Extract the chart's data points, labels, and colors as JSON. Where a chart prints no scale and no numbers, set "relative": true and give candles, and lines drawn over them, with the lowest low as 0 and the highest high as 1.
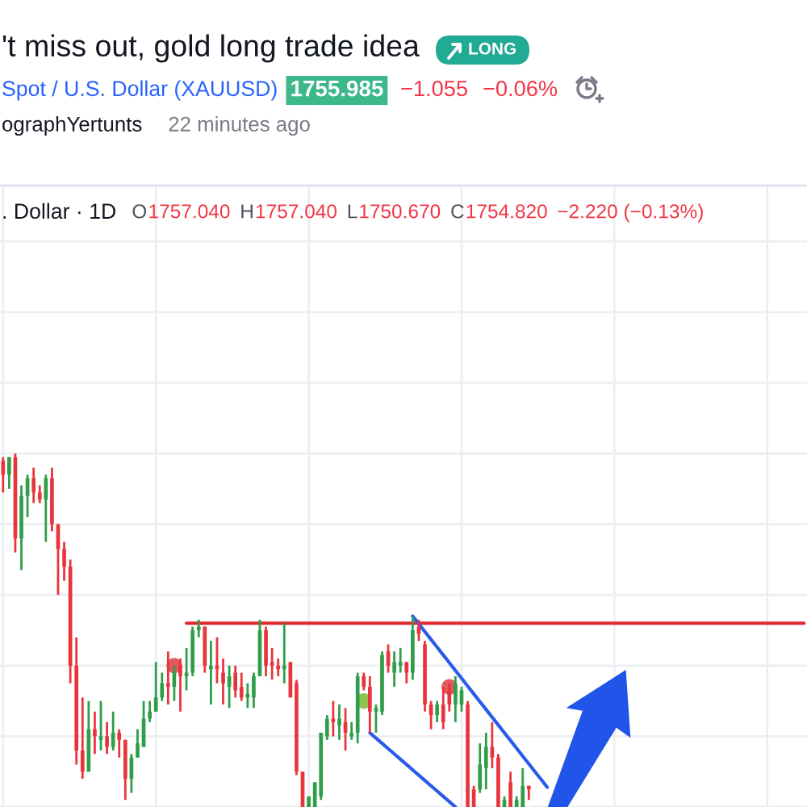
{
  "chart_data": {
    "type": "candlestick",
    "title": "'t miss out, gold long trade idea",
    "subtitle": "Spot / U.S. Dollar (XAUUSD)",
    "annotations": [
      "LONG",
      "1755.985",
      "−1.055",
      "−0.06%",
      "ographYertunts",
      "22 minutes ago",
      ". Dollar · 1D",
      "O",
      "1757.040",
      "H",
      "1757.040",
      "L",
      "1750.670",
      "C",
      "1754.820",
      "−2.220 (−0.13%)"
    ],
    "categories": [
      null,
      null,
      null,
      null,
      null,
      null,
      null,
      null,
      null,
      null,
      null,
      null,
      null,
      null,
      null,
      null,
      null,
      null,
      null,
      null,
      null,
      null,
      null,
      null,
      null,
      null,
      null,
      null,
      null,
      null,
      null,
      null,
      null,
      null,
      null,
      null,
      null,
      null,
      null,
      null,
      null,
      null,
      null,
      null,
      null,
      null,
      null,
      null,
      null,
      null,
      null,
      null,
      null,
      null,
      null,
      null,
      null,
      null,
      null,
      null,
      null,
      null,
      null,
      null,
      null,
      null,
      null,
      null,
      null,
      null,
      null,
      null,
      null,
      null,
      null,
      null,
      null,
      null,
      null,
      null,
      null,
      null,
      null,
      null,
      null,
      null,
      null,
      null,
      null,
      null,
      null,
      null,
      null,
      null,
      null,
      null,
      null,
      null,
      null,
      null,
      null,
      null,
      null,
      null,
      null,
      null,
      null,
      null,
      null,
      null,
      null,
      null,
      null,
      null,
      null,
      null,
      null,
      null,
      null,
      null,
      null,
      null,
      null,
      null,
      null,
      null,
      null,
      null,
      null,
      null,
      null,
      null
    ],
    "relative": true,
    "grid": true,
    "tick_labels": false,
    "ohlc": [
      [
        0.98,
        0.99,
        0.89,
        0.94
      ],
      [
        0.94,
        0.99,
        0.9,
        0.99
      ],
      [
        0.99,
        1.0,
        0.72,
        0.76
      ],
      [
        0.76,
        0.91,
        0.67,
        0.88
      ],
      [
        0.88,
        0.94,
        0.82,
        0.93
      ],
      [
        0.93,
        0.96,
        0.86,
        0.89
      ],
      [
        0.89,
        0.91,
        0.86,
        0.87
      ],
      [
        0.87,
        0.94,
        0.75,
        0.93
      ],
      [
        0.93,
        0.96,
        0.78,
        0.8
      ],
      [
        0.8,
        0.8,
        0.6,
        0.73
      ],
      [
        0.73,
        0.75,
        0.64,
        0.68
      ],
      [
        0.68,
        0.7,
        0.35,
        0.4
      ],
      [
        0.4,
        0.48,
        0.12,
        0.16
      ],
      [
        0.16,
        0.31,
        0.08,
        0.1
      ],
      [
        0.1,
        0.3,
        0.1,
        0.22
      ],
      [
        0.22,
        0.27,
        0.15,
        0.2
      ],
      [
        0.19,
        0.3,
        0.16,
        0.2
      ],
      [
        0.2,
        0.24,
        0.15,
        0.17
      ],
      [
        0.17,
        0.27,
        0.16,
        0.21
      ],
      [
        0.21,
        0.22,
        0.14,
        0.19
      ],
      [
        0.19,
        0.19,
        0.02,
        0.08
      ],
      [
        0.08,
        0.15,
        0.04,
        0.14
      ],
      [
        0.14,
        0.22,
        0.14,
        0.18
      ],
      [
        0.17,
        0.3,
        0.17,
        0.25
      ],
      [
        0.25,
        0.3,
        0.24,
        0.27
      ],
      [
        0.27,
        0.41,
        0.27,
        0.31
      ],
      [
        0.31,
        0.38,
        0.3,
        0.35
      ],
      [
        0.35,
        0.44,
        0.29,
        0.34
      ],
      [
        0.34,
        0.4,
        0.3,
        0.38
      ],
      [
        0.4,
        0.42,
        0.27,
        0.37
      ],
      [
        0.37,
        0.45,
        0.33,
        0.38
      ],
      [
        0.38,
        0.51,
        0.37,
        0.5
      ],
      [
        0.5,
        0.53,
        0.48,
        0.51
      ],
      [
        0.51,
        0.51,
        0.38,
        0.4
      ],
      [
        0.39,
        0.47,
        0.29,
        0.4
      ],
      [
        0.4,
        0.48,
        0.35,
        0.39
      ],
      [
        0.38,
        0.42,
        0.29,
        0.35
      ],
      [
        0.34,
        0.4,
        0.28,
        0.37
      ],
      [
        0.38,
        0.4,
        0.31,
        0.33
      ],
      [
        0.34,
        0.38,
        0.3,
        0.31
      ],
      [
        0.31,
        0.35,
        0.28,
        0.32
      ],
      [
        0.31,
        0.38,
        0.28,
        0.37
      ],
      [
        0.37,
        0.53,
        0.37,
        0.5
      ],
      [
        0.5,
        0.51,
        0.37,
        0.4
      ],
      [
        0.41,
        0.45,
        0.36,
        0.4
      ],
      [
        0.4,
        0.42,
        0.37,
        0.39
      ],
      [
        0.39,
        0.52,
        0.35,
        0.4
      ],
      [
        0.41,
        0.41,
        0.31,
        0.31
      ],
      [
        0.35,
        0.36,
        0.09,
        0.1
      ],
      [
        0.1,
        0.1,
        0,
        0
      ],
      [
        0,
        0.03,
        0,
        0.03
      ],
      [
        0,
        0.07,
        0,
        0.07
      ],
      [
        0.03,
        0.21,
        0.02,
        0.21
      ],
      [
        0.2,
        0.26,
        0.19,
        0.25
      ],
      [
        0.25,
        0.3,
        0.2,
        0.24
      ],
      [
        0.23,
        0.29,
        0.19,
        0.25
      ],
      [
        0.24,
        0.28,
        0.16,
        0.21
      ],
      [
        0.2,
        0.24,
        0.19,
        0.21
      ],
      [
        0.21,
        0.38,
        0.18,
        0.37
      ],
      [
        0.37,
        0.38,
        0.33,
        0.34
      ],
      [
        0.34,
        0.37,
        0.21,
        0.27
      ],
      [
        0.27,
        0.29,
        0.21,
        0.28
      ],
      [
        0.27,
        0.44,
        0.26,
        0.43
      ],
      [
        0.44,
        0.46,
        0.38,
        0.4
      ],
      [
        0.38,
        0.44,
        0.34,
        0.41
      ],
      [
        0.4,
        0.45,
        0.38,
        0.41
      ],
      [
        0.41,
        0.41,
        0.35,
        0.38
      ],
      [
        0.38,
        0.54,
        0.36,
        0.5
      ],
      [
        0.51,
        0.53,
        0.47,
        0.49
      ],
      [
        0.46,
        0.47,
        0.27,
        0.29
      ],
      [
        0.29,
        0.3,
        0.22,
        0.26
      ],
      [
        0.26,
        0.3,
        0.24,
        0.29
      ],
      [
        0.29,
        0.34,
        0.22,
        0.24
      ],
      [
        0.33,
        0.35,
        0.27,
        0.29
      ],
      [
        0.29,
        0.37,
        0.24,
        0.35
      ],
      [
        0.29,
        0.34,
        0.27,
        0.33
      ],
      [
        0.29,
        0.3,
        0,
        0
      ],
      [
        0.05,
        0.06,
        0,
        0
      ],
      [
        0.05,
        0.18,
        0.04,
        0.12
      ],
      [
        0.11,
        0.21,
        0.05,
        0.17
      ],
      [
        0.17,
        0.24,
        0.11,
        0.14
      ],
      [
        0.14,
        0.15,
        0,
        0
      ],
      [
        0,
        0.03,
        0,
        0.02
      ],
      [
        0.07,
        0.1,
        0,
        0
      ],
      [
        0,
        0.03,
        0,
        0.02
      ],
      [
        0,
        0.11,
        0,
        0.06
      ],
      [
        0.06,
        0.06,
        0.02,
        0.05
      ],
      null,
      null,
      null,
      null,
      null,
      null,
      null,
      null,
      null,
      null,
      null,
      null,
      null,
      null,
      null,
      null,
      null,
      null,
      null,
      null,
      null,
      null,
      null,
      null,
      null,
      null,
      null,
      null,
      null,
      null,
      null,
      null,
      null,
      null,
      null,
      null,
      null,
      null,
      null,
      null,
      null,
      null,
      null,
      null,
      null
    ],
    "colors": [
      "#e8353c",
      "#2f9e4a",
      "#e8353c",
      "#2f9e4a",
      "#2f9e4a",
      "#e8353c",
      "#e8353c",
      "#2f9e4a",
      "#e8353c",
      "#e8353c",
      "#e8353c",
      "#e8353c",
      "#e8353c",
      "#e8353c",
      "#2f9e4a",
      "#e8353c",
      "#2f9e4a",
      "#e8353c",
      "#2f9e4a",
      "#e8353c",
      "#e8353c",
      "#2f9e4a",
      "#2f9e4a",
      "#2f9e4a",
      "#2f9e4a",
      "#2f9e4a",
      "#2f9e4a",
      "#e8353c",
      "#2f9e4a",
      "#e8353c",
      "#2f9e4a",
      "#2f9e4a",
      "#2f9e4a",
      "#e8353c",
      "#2f9e4a",
      "#e8353c",
      "#e8353c",
      "#2f9e4a",
      "#e8353c",
      "#e8353c",
      "#2f9e4a",
      "#2f9e4a",
      "#2f9e4a",
      "#e8353c",
      "#e8353c",
      "#e8353c",
      "#2f9e4a",
      "#e8353c",
      "#e8353c",
      "#e8353c",
      "#2f9e4a",
      "#2f9e4a",
      "#2f9e4a",
      "#2f9e4a",
      "#e8353c",
      "#2f9e4a",
      "#e8353c",
      "#2f9e4a",
      "#2f9e4a",
      "#e8353c",
      "#e8353c",
      "#2f9e4a",
      "#2f9e4a",
      "#e8353c",
      "#2f9e4a",
      "#2f9e4a",
      "#e8353c",
      "#2f9e4a",
      "#e8353c",
      "#e8353c",
      "#e8353c",
      "#2f9e4a",
      "#e8353c",
      "#e8353c",
      "#2f9e4a",
      "#2f9e4a",
      "#e8353c",
      "#e8353c",
      "#2f9e4a",
      "#2f9e4a",
      "#e8353c",
      "#e8353c",
      "#2f9e4a",
      "#e8353c",
      "#2f9e4a",
      "#2f9e4a",
      "#e8353c",
      null,
      null,
      null,
      null,
      null,
      null,
      null,
      null,
      null,
      null,
      null,
      null,
      null,
      null,
      null,
      null,
      null,
      null,
      null,
      null,
      null,
      null,
      null,
      null,
      null,
      null,
      null,
      null,
      null,
      null,
      null,
      null,
      null,
      null,
      null,
      null,
      null,
      null,
      null,
      null,
      null,
      null,
      null,
      null,
      null
    ],
    "series": [
      {
        "type": "line",
        "color": "#e3262d",
        "values": [
          null,
          null,
          null,
          null,
          null,
          null,
          null,
          null,
          null,
          null,
          null,
          null,
          null,
          null,
          null,
          null,
          null,
          null,
          null,
          null,
          null,
          null,
          null,
          null,
          null,
          null,
          null,
          null,
          null,
          null,
          0.52,
          0.52,
          0.52,
          0.52,
          0.52,
          0.52,
          0.52,
          0.52,
          0.52,
          0.52,
          0.52,
          0.52,
          0.52,
          0.52,
          0.52,
          0.52,
          0.52,
          0.52,
          0.52,
          0.52,
          0.52,
          0.52,
          0.52,
          0.52,
          0.52,
          0.52,
          0.52,
          0.52,
          0.52,
          0.52,
          0.52,
          0.52,
          0.52,
          0.52,
          0.52,
          0.52,
          0.52,
          0.52,
          0.52,
          0.52,
          0.52,
          0.52,
          0.52,
          0.52,
          0.52,
          0.52,
          0.52,
          0.52,
          0.52,
          0.52,
          0.52,
          0.52,
          0.52,
          0.52,
          0.52,
          0.52,
          0.52,
          0.52,
          0.52,
          0.52,
          0.52,
          0.52,
          0.52,
          0.52,
          0.52,
          0.52,
          0.52,
          0.52,
          0.52,
          0.52,
          0.52,
          0.52,
          0.52,
          0.52,
          0.52,
          0.52,
          0.52,
          0.52,
          0.52,
          0.52,
          0.52,
          0.52,
          0.52,
          0.52,
          0.52,
          0.52,
          0.52,
          0.52,
          0.52,
          0.52,
          0.52,
          0.52,
          0.52,
          0.52,
          0.52,
          0.52,
          0.52,
          0.52,
          0.52,
          0.52,
          0.52,
          0.52
        ]
      },
      {
        "type": "line",
        "color": "#2a5bea",
        "values": [
          null,
          null,
          null,
          null,
          null,
          null,
          null,
          null,
          null,
          null,
          null,
          null,
          null,
          null,
          null,
          null,
          null,
          null,
          null,
          null,
          null,
          null,
          null,
          null,
          null,
          null,
          null,
          null,
          null,
          null,
          null,
          null,
          null,
          null,
          null,
          null,
          null,
          null,
          null,
          null,
          null,
          null,
          null,
          null,
          null,
          null,
          null,
          null,
          null,
          null,
          null,
          null,
          null,
          null,
          null,
          null,
          null,
          null,
          null,
          null,
          null,
          null,
          null,
          null,
          null,
          null,
          null,
          0.54,
          0.518,
          0.496,
          0.474,
          0.452,
          0.43,
          0.408,
          0.386,
          0.364,
          0.342,
          0.32,
          0.298,
          0.276,
          0.254,
          0.232,
          0.21,
          0.188,
          0.166,
          0.144,
          0.122,
          0.1,
          0.078,
          0.056,
          null,
          null,
          null,
          null,
          null,
          null,
          null,
          null,
          null,
          null,
          null,
          null,
          null,
          null,
          null,
          null,
          null,
          null,
          null,
          null,
          null,
          null,
          null,
          null,
          null,
          null,
          null,
          null,
          null,
          null,
          null,
          null,
          null,
          null,
          null,
          null,
          null,
          null,
          null,
          null,
          null,
          null
        ]
      },
      {
        "type": "line",
        "color": "#2a5bea",
        "values": [
          null,
          null,
          null,
          null,
          null,
          null,
          null,
          null,
          null,
          null,
          null,
          null,
          null,
          null,
          null,
          null,
          null,
          null,
          null,
          null,
          null,
          null,
          null,
          null,
          null,
          null,
          null,
          null,
          null,
          null,
          null,
          null,
          null,
          null,
          null,
          null,
          null,
          null,
          null,
          null,
          null,
          null,
          null,
          null,
          null,
          null,
          null,
          null,
          null,
          null,
          null,
          null,
          null,
          null,
          null,
          null,
          null,
          null,
          null,
          null,
          0.21,
          0.195,
          0.18,
          0.165,
          0.15,
          0.135,
          0.12,
          0.105,
          0.09,
          0.075,
          0.06,
          0.045,
          0.03,
          0.015,
          0,
          null,
          null,
          null,
          null,
          null,
          null,
          null,
          null,
          null,
          null,
          null,
          null,
          null,
          null,
          null,
          null,
          null,
          null,
          null,
          null,
          null,
          null,
          null,
          null,
          null,
          null,
          null,
          null,
          null,
          null,
          null,
          null,
          null,
          null,
          null,
          null,
          null,
          null,
          null,
          null,
          null,
          null,
          null,
          null,
          null,
          null,
          null,
          null,
          null,
          null,
          null,
          null,
          null,
          null,
          null,
          null,
          null
        ]
      },
      {
        "type": "scatter",
        "color": "#e05a5e",
        "marker": "circle",
        "values": [
          null,
          null,
          null,
          null,
          null,
          null,
          null,
          null,
          null,
          null,
          null,
          null,
          null,
          null,
          null,
          null,
          null,
          null,
          null,
          null,
          null,
          null,
          null,
          null,
          null,
          null,
          null,
          null,
          0.4,
          null,
          null,
          null,
          null,
          null,
          null,
          null,
          null,
          null,
          null,
          null,
          null,
          null,
          null,
          null,
          null,
          null,
          null,
          null,
          null,
          null,
          null,
          null,
          null,
          null,
          null,
          null,
          null,
          null,
          null,
          null,
          null,
          null,
          null,
          null,
          null,
          null,
          null,
          null,
          null,
          null,
          null,
          null,
          null,
          0.34,
          null,
          null,
          null,
          null,
          null,
          null,
          null,
          null,
          null,
          null,
          null,
          null,
          null,
          null,
          null,
          null,
          null,
          null,
          null,
          null,
          null,
          null,
          null,
          null,
          null,
          null,
          null,
          null,
          null,
          null,
          null,
          null,
          null,
          null,
          null,
          null,
          null,
          null,
          null,
          null,
          null,
          null,
          null,
          null,
          null,
          null,
          null,
          null,
          null,
          null,
          null,
          null,
          null,
          null,
          null,
          null,
          null,
          null
        ]
      },
      {
        "type": "scatter",
        "color": "#8fc450",
        "marker": "circle",
        "values": [
          null,
          null,
          null,
          null,
          null,
          null,
          null,
          null,
          null,
          null,
          null,
          null,
          null,
          null,
          null,
          null,
          null,
          null,
          null,
          null,
          null,
          null,
          null,
          null,
          null,
          null,
          null,
          null,
          null,
          null,
          null,
          null,
          null,
          null,
          null,
          null,
          null,
          null,
          null,
          null,
          null,
          null,
          null,
          null,
          null,
          null,
          null,
          null,
          null,
          null,
          null,
          null,
          null,
          null,
          null,
          null,
          null,
          null,
          null,
          0.3,
          null,
          null,
          null,
          null,
          null,
          null,
          null,
          null,
          null,
          null,
          null,
          null,
          null,
          null,
          null,
          null,
          null,
          null,
          null,
          null,
          null,
          null,
          null,
          null,
          null,
          null,
          null,
          null,
          null,
          null,
          null,
          null,
          null,
          null,
          null,
          null,
          null,
          null,
          null,
          null,
          null,
          null,
          null,
          null,
          null,
          null,
          null,
          null,
          null,
          null,
          null,
          null,
          null,
          null,
          null,
          null,
          null,
          null,
          null,
          null,
          null,
          null,
          null,
          null,
          null,
          null,
          null,
          null,
          null,
          null,
          null,
          null
        ]
      }
    ]
  }
}
